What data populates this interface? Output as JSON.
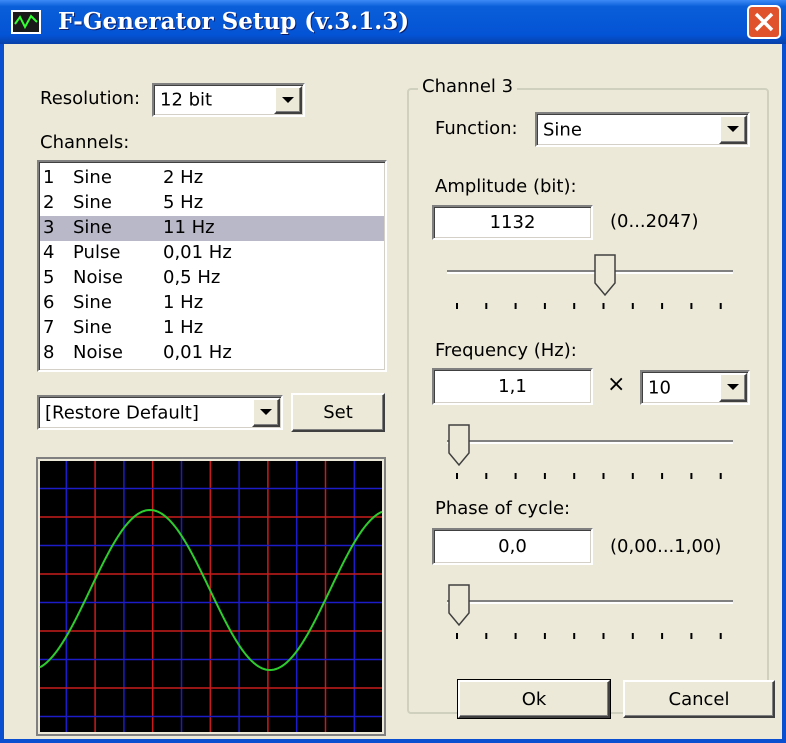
{
  "window": {
    "title": "F-Generator Setup (v.3.1.3)"
  },
  "left": {
    "resolution_label": "Resolution:",
    "resolution": "12 bit",
    "channels_label": "Channels:",
    "channels": [
      [
        "1",
        "Sine",
        "2 Hz"
      ],
      [
        "2",
        "Sine",
        "5 Hz"
      ],
      [
        "3",
        "Sine",
        "11 Hz"
      ],
      [
        "4",
        "Pulse",
        "0,01 Hz"
      ],
      [
        "5",
        "Noise",
        "0,5 Hz"
      ],
      [
        "6",
        "Sine",
        "1 Hz"
      ],
      [
        "7",
        "Sine",
        "1 Hz"
      ],
      [
        "8",
        "Noise",
        "0,01 Hz"
      ]
    ],
    "preset": "[Restore Default]",
    "set_button": "Set"
  },
  "right": {
    "group_title": "Channel 3",
    "function_label": "Function:",
    "function": "Sine",
    "amplitude_label": "Amplitude (bit):",
    "amplitude": "1132",
    "amplitude_range": "(0...2047)",
    "frequency_label": "Frequency (Hz):",
    "frequency": "1,1",
    "multiplier_sign": "×",
    "multiplier": "10",
    "phase_label": "Phase of cycle:",
    "phase": "0,0",
    "phase_range": "(0,00...1,00)"
  },
  "buttons": {
    "ok": "Ok",
    "cancel": "Cancel"
  }
}
